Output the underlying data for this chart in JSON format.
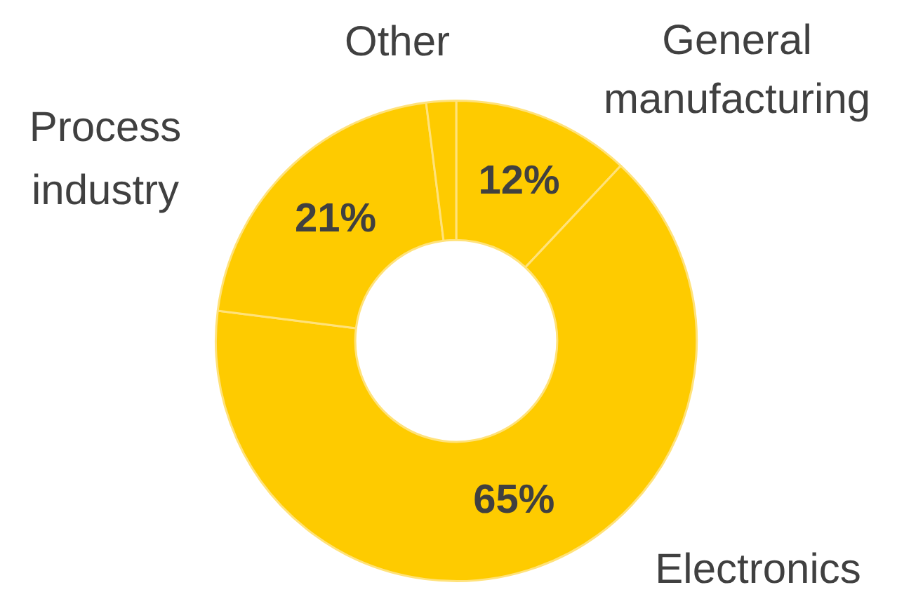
{
  "chart_data": {
    "type": "donut",
    "categories": [
      "General manufacturing",
      "Electronics",
      "Process industry",
      "Other"
    ],
    "values": [
      12,
      65,
      21,
      2
    ],
    "colors": [
      "#fecb00",
      "#fecb00",
      "#fecb00",
      "#fecb00"
    ],
    "value_labels": [
      "12%",
      "65%",
      "21%",
      null
    ],
    "legend": false
  }
}
